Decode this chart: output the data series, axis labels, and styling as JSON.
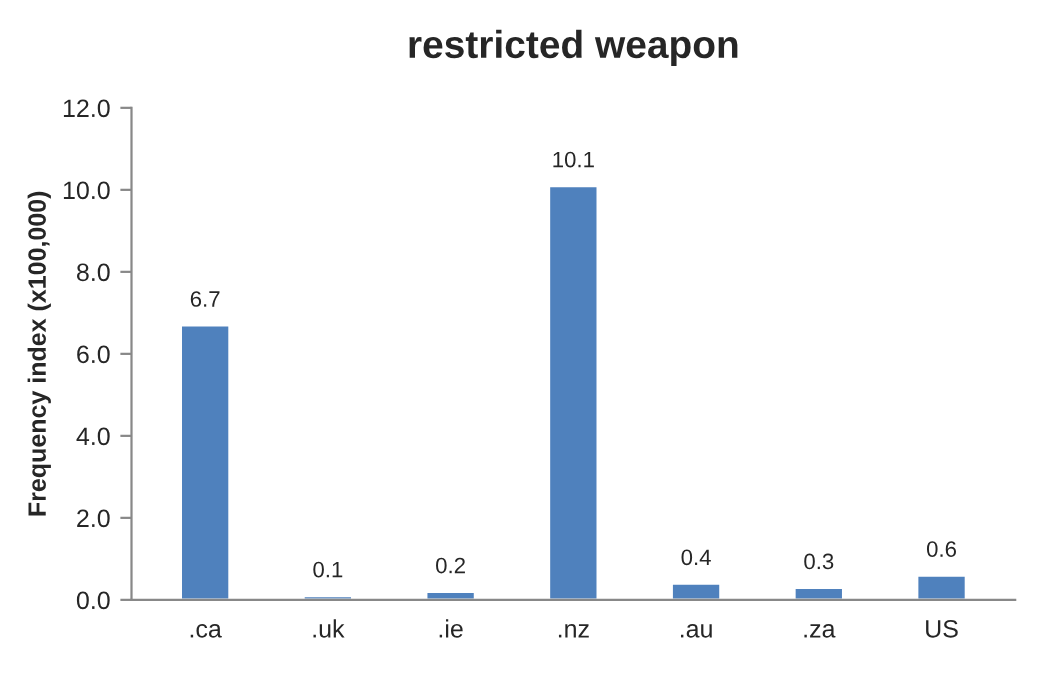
{
  "chart_data": {
    "type": "bar",
    "title": "restricted weapon",
    "ylabel": "Frequency index (x100,000)",
    "categories": [
      ".ca",
      ".uk",
      ".ie",
      ".nz",
      ".au",
      ".za",
      "US"
    ],
    "values": [
      6.7,
      0.1,
      0.2,
      10.1,
      0.4,
      0.3,
      0.6
    ],
    "color": "#4f81bd",
    "ylim": [
      0,
      12
    ],
    "yticks": [
      {
        "value": 0,
        "label": "0.0"
      },
      {
        "value": 2,
        "label": "2.0"
      },
      {
        "value": 4,
        "label": "4.0"
      },
      {
        "value": 6,
        "label": "6.0"
      },
      {
        "value": 8,
        "label": "8.0"
      },
      {
        "value": 10,
        "label": "10.0"
      },
      {
        "value": 12,
        "label": "12.0"
      }
    ],
    "data_labels": true,
    "grid": false,
    "legend": false
  }
}
